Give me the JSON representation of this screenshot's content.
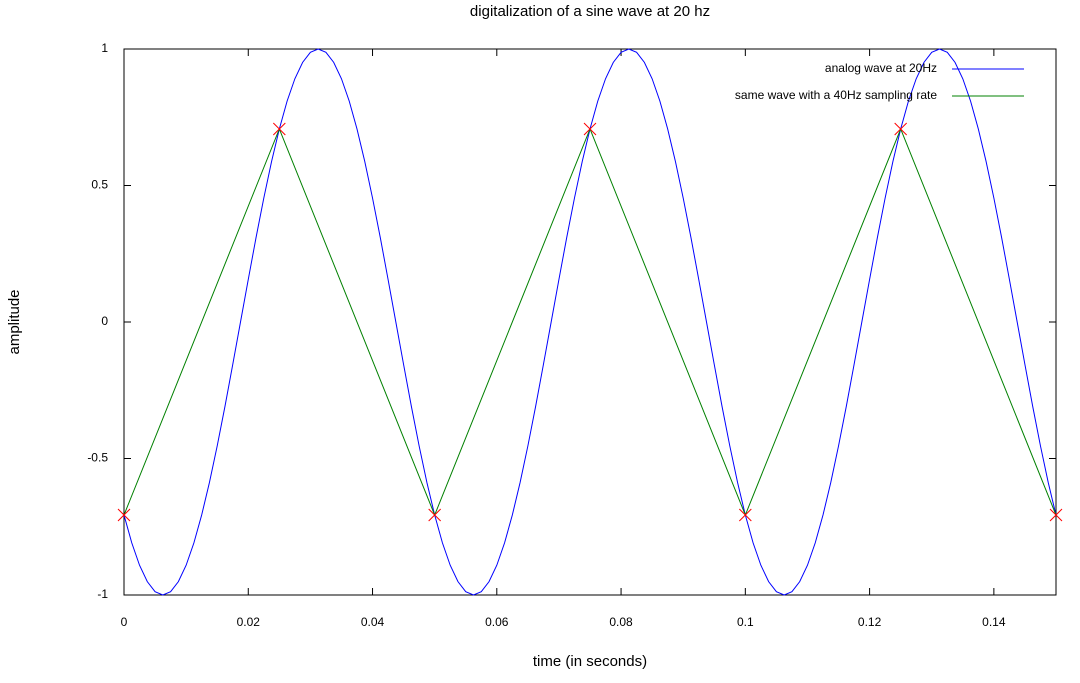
{
  "chart_data": {
    "type": "line",
    "title": "digitalization of a sine wave at 20 hz",
    "x_label": "time (in seconds)",
    "y_label": "amplitude",
    "xlim": [
      0,
      0.15
    ],
    "ylim": [
      -1,
      1
    ],
    "xticks": [
      0,
      0.02,
      0.04,
      0.06,
      0.08,
      0.1,
      0.12,
      0.14
    ],
    "yticks": [
      -1,
      -0.5,
      0,
      0.5,
      1
    ],
    "legend": "top right",
    "series": [
      {
        "name": "analog wave at 20Hz",
        "color": "#0000ff",
        "x": [
          0,
          0.00125,
          0.0025,
          0.00375,
          0.005,
          0.00625,
          0.0075,
          0.00875,
          0.01,
          0.01125,
          0.0125,
          0.01375,
          0.015,
          0.01625,
          0.0175,
          0.01875,
          0.02,
          0.02125,
          0.0225,
          0.02375,
          0.025,
          0.02625,
          0.0275,
          0.02875,
          0.03,
          0.03125,
          0.0325,
          0.03375,
          0.035,
          0.03625,
          0.0375,
          0.03875,
          0.04,
          0.04125,
          0.0425,
          0.04375,
          0.045,
          0.04625,
          0.0475,
          0.04875,
          0.05,
          0.05125,
          0.0525,
          0.05375,
          0.055,
          0.05625,
          0.0575,
          0.05875,
          0.06,
          0.06125,
          0.0625,
          0.06375,
          0.065,
          0.06625,
          0.0675,
          0.06875,
          0.07,
          0.07125,
          0.0725,
          0.07375,
          0.075,
          0.07625,
          0.0775,
          0.07875,
          0.08,
          0.08125,
          0.0825,
          0.08375,
          0.085,
          0.08625,
          0.0875,
          0.08875,
          0.09,
          0.09125,
          0.0925,
          0.09375,
          0.095,
          0.09625,
          0.0975,
          0.09875,
          0.1,
          0.10125,
          0.1025,
          0.10375,
          0.105,
          0.10625,
          0.1075,
          0.10875,
          0.11,
          0.11125,
          0.1125,
          0.11375,
          0.115,
          0.11625,
          0.1175,
          0.11875,
          0.12,
          0.12125,
          0.1225,
          0.12375,
          0.125,
          0.12625,
          0.1275,
          0.12875,
          0.13,
          0.13125,
          0.1325,
          0.13375,
          0.135,
          0.13625,
          0.1375,
          0.13875,
          0.14,
          0.14125,
          0.1425,
          0.14375,
          0.145,
          0.14625,
          0.1475,
          0.14875,
          0.15
        ],
        "values": [
          -0.707,
          -0.809,
          -0.891,
          -0.951,
          -0.988,
          -1,
          -0.988,
          -0.951,
          -0.891,
          -0.809,
          -0.707,
          -0.588,
          -0.454,
          -0.309,
          -0.156,
          0,
          0.156,
          0.309,
          0.454,
          0.588,
          0.707,
          0.809,
          0.891,
          0.951,
          0.988,
          1,
          0.988,
          0.951,
          0.891,
          0.809,
          0.707,
          0.588,
          0.454,
          0.309,
          0.156,
          0,
          -0.156,
          -0.309,
          -0.454,
          -0.588,
          -0.707,
          -0.809,
          -0.891,
          -0.951,
          -0.988,
          -1,
          -0.988,
          -0.951,
          -0.891,
          -0.809,
          -0.707,
          -0.588,
          -0.454,
          -0.309,
          -0.156,
          0,
          0.156,
          0.309,
          0.454,
          0.588,
          0.707,
          0.809,
          0.891,
          0.951,
          0.988,
          1,
          0.988,
          0.951,
          0.891,
          0.809,
          0.707,
          0.588,
          0.454,
          0.309,
          0.156,
          0,
          -0.156,
          -0.309,
          -0.454,
          -0.588,
          -0.707,
          -0.809,
          -0.891,
          -0.951,
          -0.988,
          -1,
          -0.988,
          -0.951,
          -0.891,
          -0.809,
          -0.707,
          -0.588,
          -0.454,
          -0.309,
          -0.156,
          0,
          0.156,
          0.309,
          0.454,
          0.588,
          0.707,
          0.809,
          0.891,
          0.951,
          0.988,
          1,
          0.988,
          0.951,
          0.891,
          0.809,
          0.707,
          0.588,
          0.454,
          0.309,
          0.156,
          0,
          -0.156,
          -0.309,
          -0.454,
          -0.588,
          -0.707
        ]
      },
      {
        "name": "same wave with a 40Hz sampling rate",
        "color": "#008000",
        "marker_color": "#ff0000",
        "x": [
          0,
          0.025,
          0.05,
          0.075,
          0.1,
          0.125,
          0.15
        ],
        "values": [
          -0.707,
          0.707,
          -0.707,
          0.707,
          -0.707,
          0.707,
          -0.707
        ]
      }
    ]
  }
}
